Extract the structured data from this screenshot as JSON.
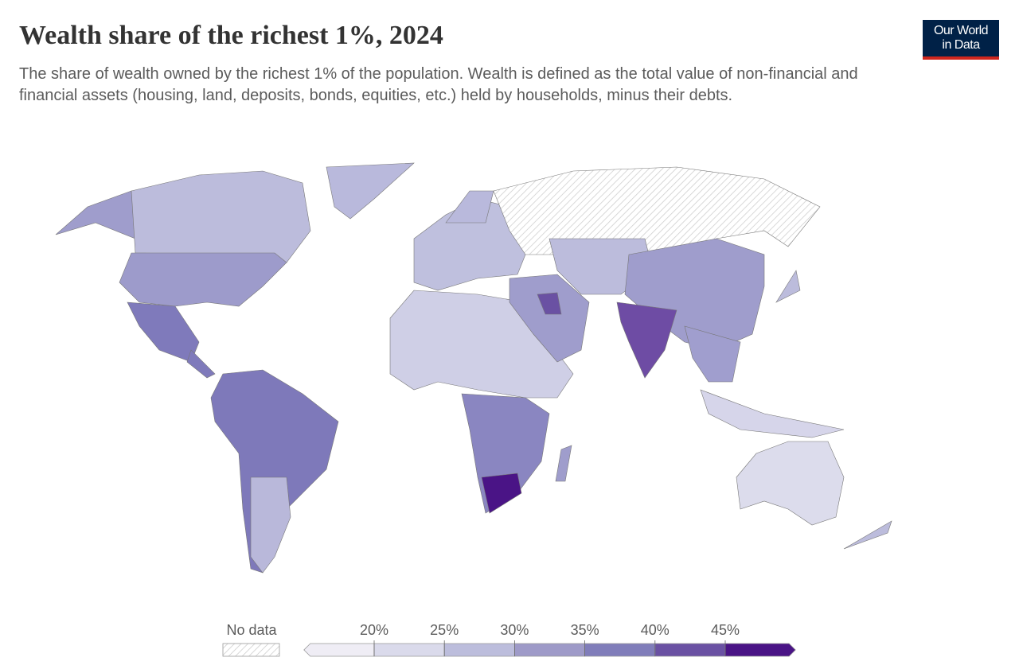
{
  "header": {
    "title": "Wealth share of the richest 1%, 2024",
    "subtitle": "The share of wealth owned by the richest 1% of the population. Wealth is defined as the total value of non-financial and financial assets (housing, land, deposits, bonds, equities, etc.) held by households, minus their debts.",
    "logo": [
      "Our World",
      "in Data"
    ]
  },
  "legend": {
    "no_data_label": "No data",
    "ticks": [
      {
        "value": 20,
        "label": "20%"
      },
      {
        "value": 25,
        "label": "25%"
      },
      {
        "value": 30,
        "label": "30%"
      },
      {
        "value": 35,
        "label": "35%"
      },
      {
        "value": 40,
        "label": "40%"
      },
      {
        "value": 45,
        "label": "45%"
      }
    ],
    "colors": [
      "#efedf5",
      "#dadaeb",
      "#bcbddc",
      "#9e9ac8",
      "#807dba",
      "#6a51a3",
      "#4a1486"
    ]
  }
}
